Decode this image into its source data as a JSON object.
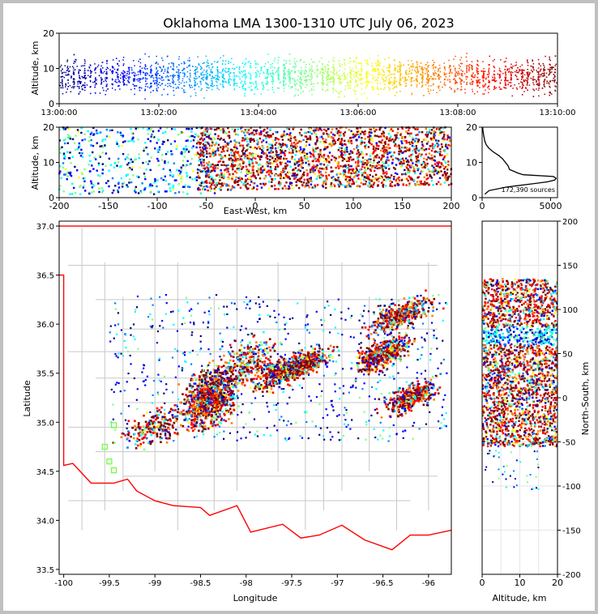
{
  "title": "Oklahoma LMA 1300-1310 UTC July 06, 2023",
  "colors": {
    "background": "#ffffff",
    "frame": "#c0c0c0",
    "state_border": "#ff0000",
    "county_lines": "#c8c8c8",
    "colormap": [
      "#00007f",
      "#0000ff",
      "#0080ff",
      "#00ffff",
      "#80ff80",
      "#ffff00",
      "#ff8000",
      "#ff0000",
      "#7f0000"
    ]
  },
  "chart_data": [
    {
      "id": "time-height",
      "type": "scatter",
      "xlabel": "",
      "ylabel": "Altitude, km",
      "ylim": [
        0,
        20
      ],
      "yticks": [
        0,
        10,
        20
      ],
      "xticks": [
        "13:00:00",
        "13:02:00",
        "13:04:00",
        "13:06:00",
        "13:08:00",
        "13:10:00"
      ],
      "time_range_minutes": [
        0,
        10
      ],
      "colored_by": "time"
    },
    {
      "id": "ew-altitude",
      "type": "scatter",
      "xlabel": "East-West, km",
      "ylabel": "Altitude, km",
      "xlim": [
        -200,
        200
      ],
      "ylim": [
        0,
        20
      ],
      "xticks": [
        -200,
        -150,
        -100,
        -50,
        0,
        50,
        100,
        150,
        200
      ],
      "yticks": [
        0,
        10,
        20
      ]
    },
    {
      "id": "altitude-histogram",
      "type": "line",
      "xlim": [
        0,
        5500
      ],
      "ylim": [
        0,
        20
      ],
      "xticks": [
        0,
        5000
      ],
      "yticks": [
        0,
        10,
        20
      ],
      "annotation": "172,390 sources",
      "profile": {
        "altitude": [
          1,
          2,
          3,
          4,
          4.5,
          5,
          5.5,
          6,
          6.5,
          7,
          7.5,
          8,
          9,
          10,
          11,
          12,
          13,
          14,
          15,
          16,
          17,
          18,
          19,
          20
        ],
        "count": [
          200,
          500,
          1800,
          3800,
          4800,
          5300,
          5400,
          5200,
          3000,
          2600,
          2300,
          2000,
          1900,
          1700,
          1500,
          1200,
          800,
          500,
          300,
          200,
          150,
          100,
          60,
          40
        ]
      }
    },
    {
      "id": "plan-view",
      "type": "scatter",
      "xlabel": "Longitude",
      "ylabel": "Latitude",
      "xlim": [
        -100.05,
        -95.75
      ],
      "ylim": [
        33.45,
        37.05
      ],
      "xticks": [
        -100.0,
        -99.5,
        -99.0,
        -98.5,
        -98.0,
        -97.5,
        -97.0,
        -96.5,
        -96.0
      ],
      "yticks": [
        33.5,
        34.0,
        34.5,
        35.0,
        35.5,
        36.0,
        36.5,
        37.0
      ],
      "stations": [
        [
          -99.45,
          34.97
        ],
        [
          -99.55,
          34.75
        ],
        [
          -99.5,
          34.6
        ],
        [
          -99.45,
          34.51
        ]
      ]
    },
    {
      "id": "ns-altitude",
      "type": "scatter",
      "xlabel": "Altitude, km",
      "ylabel": "North-South, km",
      "xlim": [
        0,
        20
      ],
      "ylim": [
        -200,
        200
      ],
      "xticks": [
        0,
        10,
        20
      ],
      "yticks": [
        -200,
        -150,
        -100,
        -50,
        0,
        50,
        100,
        150,
        200
      ]
    }
  ]
}
